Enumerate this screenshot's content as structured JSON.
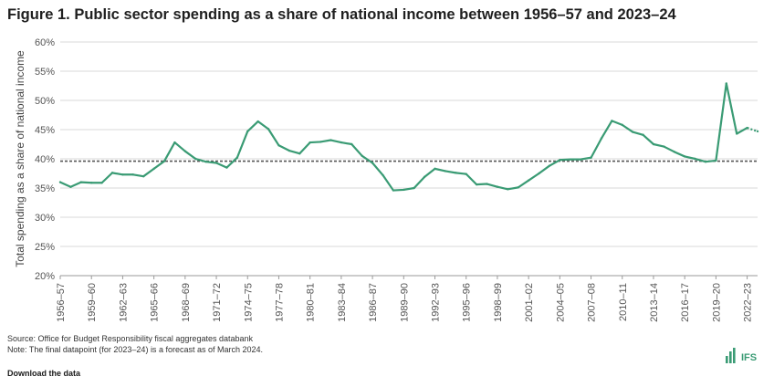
{
  "title": "Figure 1. Public sector spending as a share of national income between 1956–57 and 2023–24",
  "source": "Source: Office for Budget Responsibility fiscal aggregates databank",
  "note": "Note: The final datapoint (for 2023–24) is a forecast as of March 2024.",
  "download": "Download the data",
  "logo_text": "IFS",
  "colors": {
    "line": "#3a9b74",
    "average": "#555555",
    "grid": "#d9d9d9",
    "brand": "#3a9b74"
  },
  "chart_data": {
    "type": "line",
    "title": "Figure 1. Public sector spending as a share of national income between 1956–57 and 2023–24",
    "xlabel": "",
    "ylabel": "Total spending as a share of national income",
    "ylim": [
      20,
      60
    ],
    "y_ticks": [
      "20%",
      "25%",
      "30%",
      "35%",
      "40%",
      "45%",
      "50%",
      "55%",
      "60%"
    ],
    "x_tick_labels": [
      "1956–57",
      "1959–60",
      "1962–63",
      "1965–66",
      "1968–69",
      "1971–72",
      "1974–75",
      "1977–78",
      "1980–81",
      "1983–84",
      "1986–87",
      "1989–90",
      "1992–93",
      "1995–96",
      "1998–99",
      "2001–02",
      "2004–05",
      "2007–08",
      "2010–11",
      "2013–14",
      "2016–17",
      "2019–20",
      "2022–23"
    ],
    "grid": true,
    "average_line": 39.6,
    "series": [
      {
        "values": [
          36.0,
          35.2,
          36.0,
          35.9,
          35.9,
          37.6,
          37.3,
          37.3,
          37.0,
          38.3,
          39.6,
          42.8,
          41.3,
          40.0,
          39.5,
          39.3,
          38.5,
          40.2,
          44.7,
          46.4,
          45.1,
          42.3,
          41.4,
          40.9,
          42.8,
          42.9,
          43.2,
          42.8,
          42.5,
          40.5,
          39.3,
          37.2,
          34.6,
          34.7,
          35.0,
          36.9,
          38.3,
          37.9,
          37.6,
          37.4,
          35.6,
          35.7,
          35.2,
          34.8,
          35.1,
          36.3,
          37.5,
          38.8,
          39.8,
          39.9,
          39.9,
          40.2,
          43.5,
          46.5,
          45.8,
          44.6,
          44.1,
          42.5,
          42.1,
          41.2,
          40.4,
          40.0,
          39.5,
          39.7,
          52.9,
          44.3,
          45.3,
          44.7
        ]
      }
    ]
  }
}
